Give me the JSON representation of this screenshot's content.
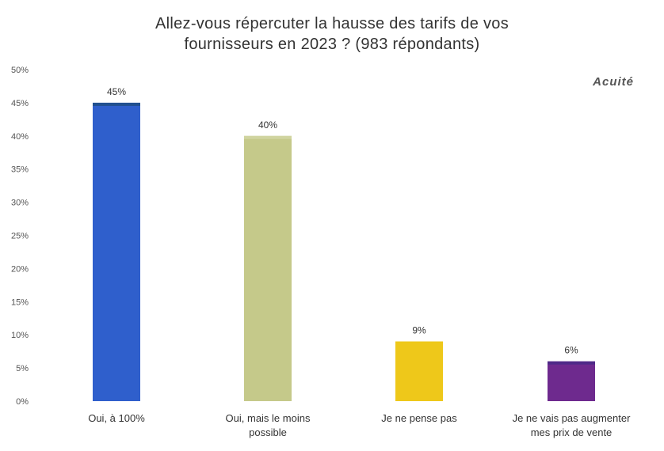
{
  "chart_data": {
    "type": "bar",
    "title_lines": [
      "Allez-vous répercuter la hausse des tarifs de vos",
      "fournisseurs en 2023 ? (983 répondants)"
    ],
    "brand": "Acuité",
    "categories": [
      [
        "Oui, à 100%"
      ],
      [
        "Oui, mais le moins",
        "possible"
      ],
      [
        "Je ne pense pas"
      ],
      [
        "Je ne vais pas augmenter",
        "mes prix de vente"
      ]
    ],
    "values": [
      45,
      40,
      9,
      6
    ],
    "data_labels": [
      "45%",
      "40%",
      "9%",
      "6%"
    ],
    "colors": [
      "#2f5fcc",
      "#c5c98a",
      "#eec81a",
      "#6e2a8e"
    ],
    "top_band_colors": [
      "#21508f",
      "#d0d4a0",
      "#eec81a",
      "#4f2a88"
    ],
    "ylim": [
      0,
      50
    ],
    "yticks": [
      0,
      5,
      10,
      15,
      20,
      25,
      30,
      35,
      40,
      45,
      50
    ],
    "ytick_labels": [
      "0%",
      "5%",
      "10%",
      "15%",
      "20%",
      "25%",
      "30%",
      "35%",
      "40%",
      "45%",
      "50%"
    ],
    "grid": false,
    "legend": "none"
  }
}
